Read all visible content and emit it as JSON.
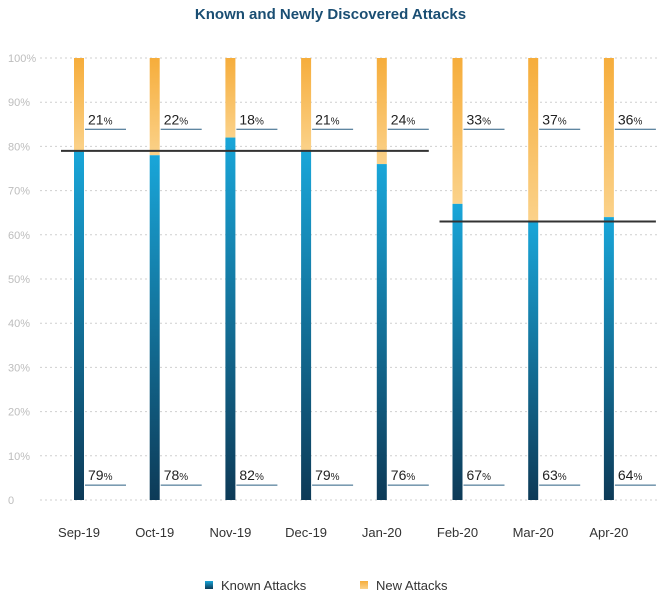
{
  "chart_data": {
    "type": "bar",
    "stacked": true,
    "title": "Known and Newly Discovered Attacks",
    "categories": [
      "Sep-19",
      "Oct-19",
      "Nov-19",
      "Dec-19",
      "Jan-20",
      "Feb-20",
      "Mar-20",
      "Apr-20"
    ],
    "series": [
      {
        "name": "Known Attacks",
        "values": [
          79,
          78,
          82,
          79,
          76,
          67,
          63,
          64
        ]
      },
      {
        "name": "New Attacks",
        "values": [
          21,
          22,
          18,
          21,
          24,
          33,
          37,
          36
        ]
      }
    ],
    "value_suffix": "%",
    "yticks": [
      "0",
      "10%",
      "20%",
      "30%",
      "40%",
      "50%",
      "60%",
      "70%",
      "80%",
      "90%",
      "100%"
    ],
    "ylim": [
      0,
      100
    ],
    "reference_lines": [
      {
        "value": 79,
        "from": "Sep-19",
        "to": "Jan-20"
      },
      {
        "value": 63,
        "from": "Feb-20",
        "to": "Apr-20"
      }
    ],
    "grid": true,
    "legend": "bottom",
    "colors": {
      "known_top": "#19a6d9",
      "known_bottom": "#0d3a57",
      "new_top": "#f6ad3b",
      "new_bottom": "#fbd28a",
      "reference": "#333333"
    }
  }
}
